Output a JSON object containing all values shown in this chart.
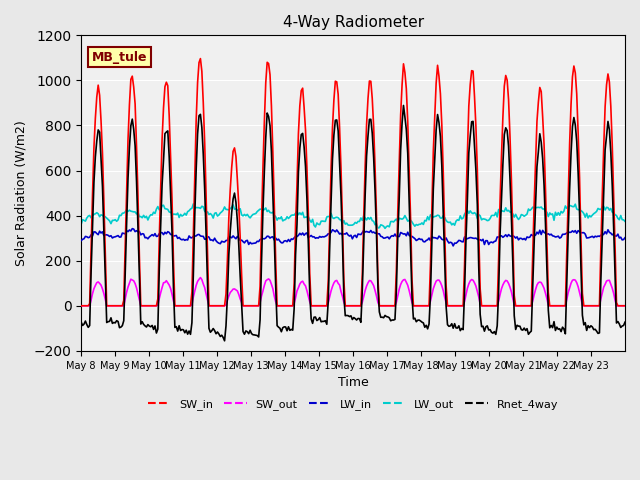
{
  "title": "4-Way Radiometer",
  "xlabel": "Time",
  "ylabel": "Solar Radiation (W/m2)",
  "ylim": [
    -200,
    1200
  ],
  "annotation": "MB_tule",
  "x_tick_labels": [
    "May 8",
    "May 9",
    "May 10",
    "May 11",
    "May 12",
    "May 13",
    "May 14",
    "May 15",
    "May 16",
    "May 17",
    "May 18",
    "May 19",
    "May 20",
    "May 21",
    "May 22",
    "May 23"
  ],
  "series": {
    "SW_in": {
      "color": "#ff0000",
      "lw": 1.2
    },
    "SW_out": {
      "color": "#ff00ff",
      "lw": 1.2
    },
    "LW_in": {
      "color": "#0000cc",
      "lw": 1.2
    },
    "LW_out": {
      "color": "#00cccc",
      "lw": 1.2
    },
    "Rnet_4way": {
      "color": "#000000",
      "lw": 1.2
    }
  },
  "legend_order": [
    "SW_in",
    "SW_out",
    "LW_in",
    "LW_out",
    "Rnet_4way"
  ],
  "bg_color": "#e8e8e8",
  "plot_bg": "#f0f0f0",
  "annotation_bg": "#ffffaa",
  "annotation_fg": "#800000"
}
